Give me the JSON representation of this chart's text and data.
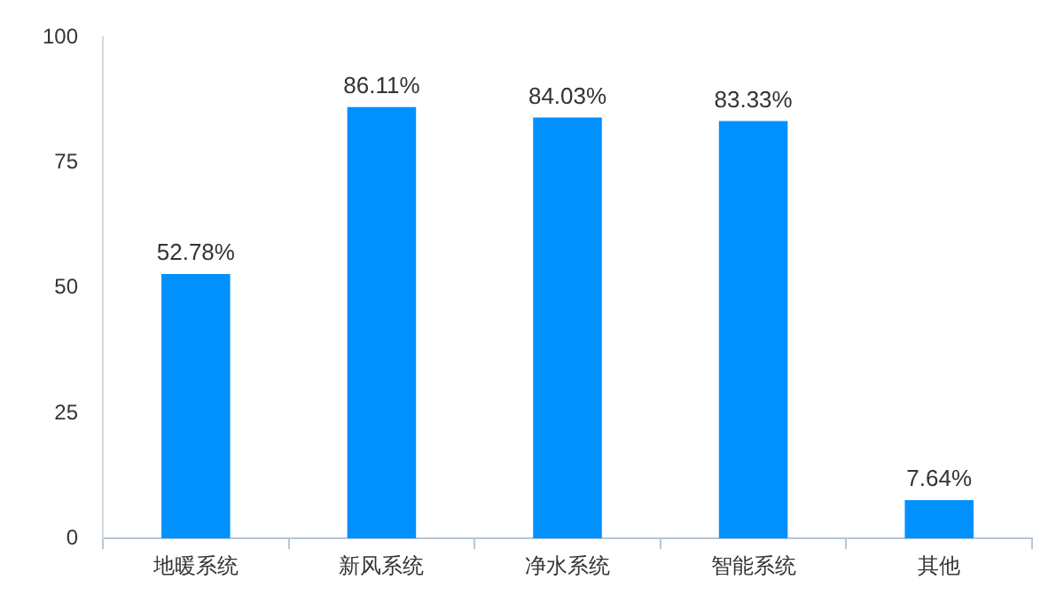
{
  "chart_data": {
    "type": "bar",
    "categories": [
      "地暖系统",
      "新风系统",
      "净水系统",
      "智能系统",
      "其他"
    ],
    "values": [
      52.78,
      86.11,
      84.03,
      83.33,
      7.64
    ],
    "value_labels": [
      "52.78%",
      "86.11%",
      "84.03%",
      "83.33%",
      "7.64%"
    ],
    "color": "#0091ff",
    "ylim": [
      0,
      100
    ],
    "yticks": [
      0,
      25,
      50,
      75,
      100
    ]
  }
}
